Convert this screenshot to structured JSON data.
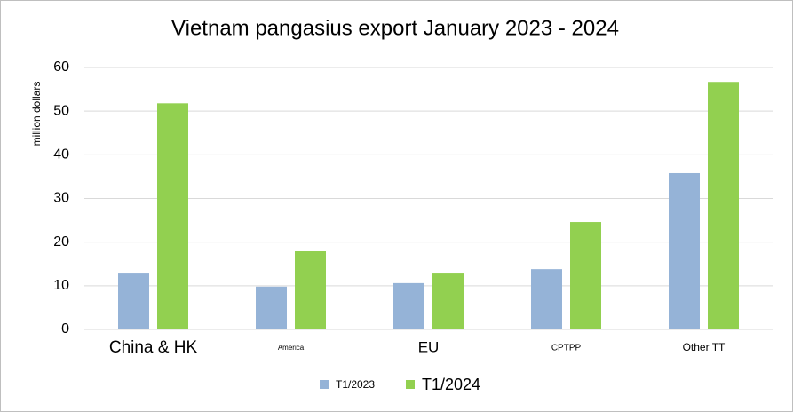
{
  "chart_data": {
    "type": "bar",
    "title": "Vietnam pangasius export January 2023 - 2024",
    "y_label": "million dollars",
    "categories": [
      "China & HK",
      "America",
      "EU",
      "CPTPP",
      "Other TT"
    ],
    "series": [
      {
        "name": "T1/2023",
        "color": "#95b3d7",
        "values": [
          12.8,
          9.8,
          10.6,
          13.8,
          35.8
        ]
      },
      {
        "name": "T1/2024",
        "color": "#92d050",
        "values": [
          51.8,
          17.9,
          12.8,
          24.6,
          56.7
        ]
      }
    ],
    "ylim": [
      0,
      60
    ],
    "yticks": [
      0,
      10,
      20,
      30,
      40,
      50,
      60
    ],
    "grid": true,
    "legend": "bottom"
  }
}
